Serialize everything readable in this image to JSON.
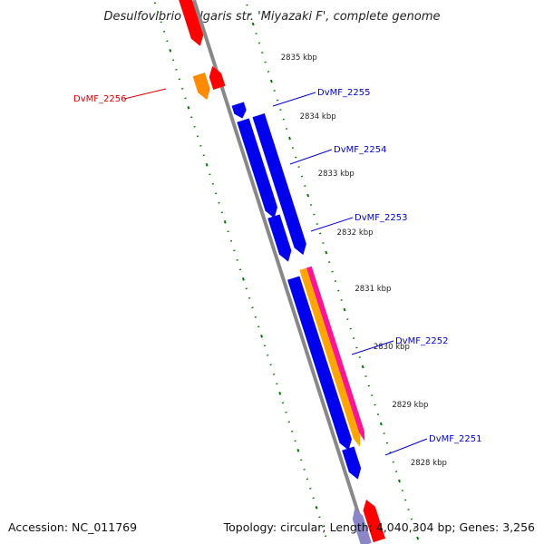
{
  "title": "Desulfovibrio vulgaris str. 'Miyazaki F', complete genome",
  "footer": {
    "accession": "Accession: NC_011769",
    "summary": "Topology: circular; Length: 4,040,304 bp; Genes: 3,256"
  },
  "colors": {
    "forward_gene": "#ff0000",
    "forward_gene_other": "#ff8c00",
    "reverse_gene": "#0000ee",
    "label_forward": "#dd0000",
    "label_reverse": "#0000cc",
    "tick_dots": "#007700",
    "backbone": "#888888",
    "rrna_stripe": "#ff1493",
    "orange_stripe": "#ffa500"
  },
  "ticks": [
    "2835 kbp",
    "2834 kbp",
    "2833 kbp",
    "2832 kbp",
    "2831 kbp",
    "2830 kbp",
    "2829 kbp",
    "2828 kbp"
  ],
  "gene_labels": [
    {
      "name": "DvMF_2256",
      "strand": "forward"
    },
    {
      "name": "DvMF_2255",
      "strand": "reverse"
    },
    {
      "name": "DvMF_2254",
      "strand": "reverse"
    },
    {
      "name": "DvMF_2253",
      "strand": "reverse"
    },
    {
      "name": "DvMF_2252",
      "strand": "reverse"
    },
    {
      "name": "DvMF_2251",
      "strand": "reverse"
    }
  ]
}
